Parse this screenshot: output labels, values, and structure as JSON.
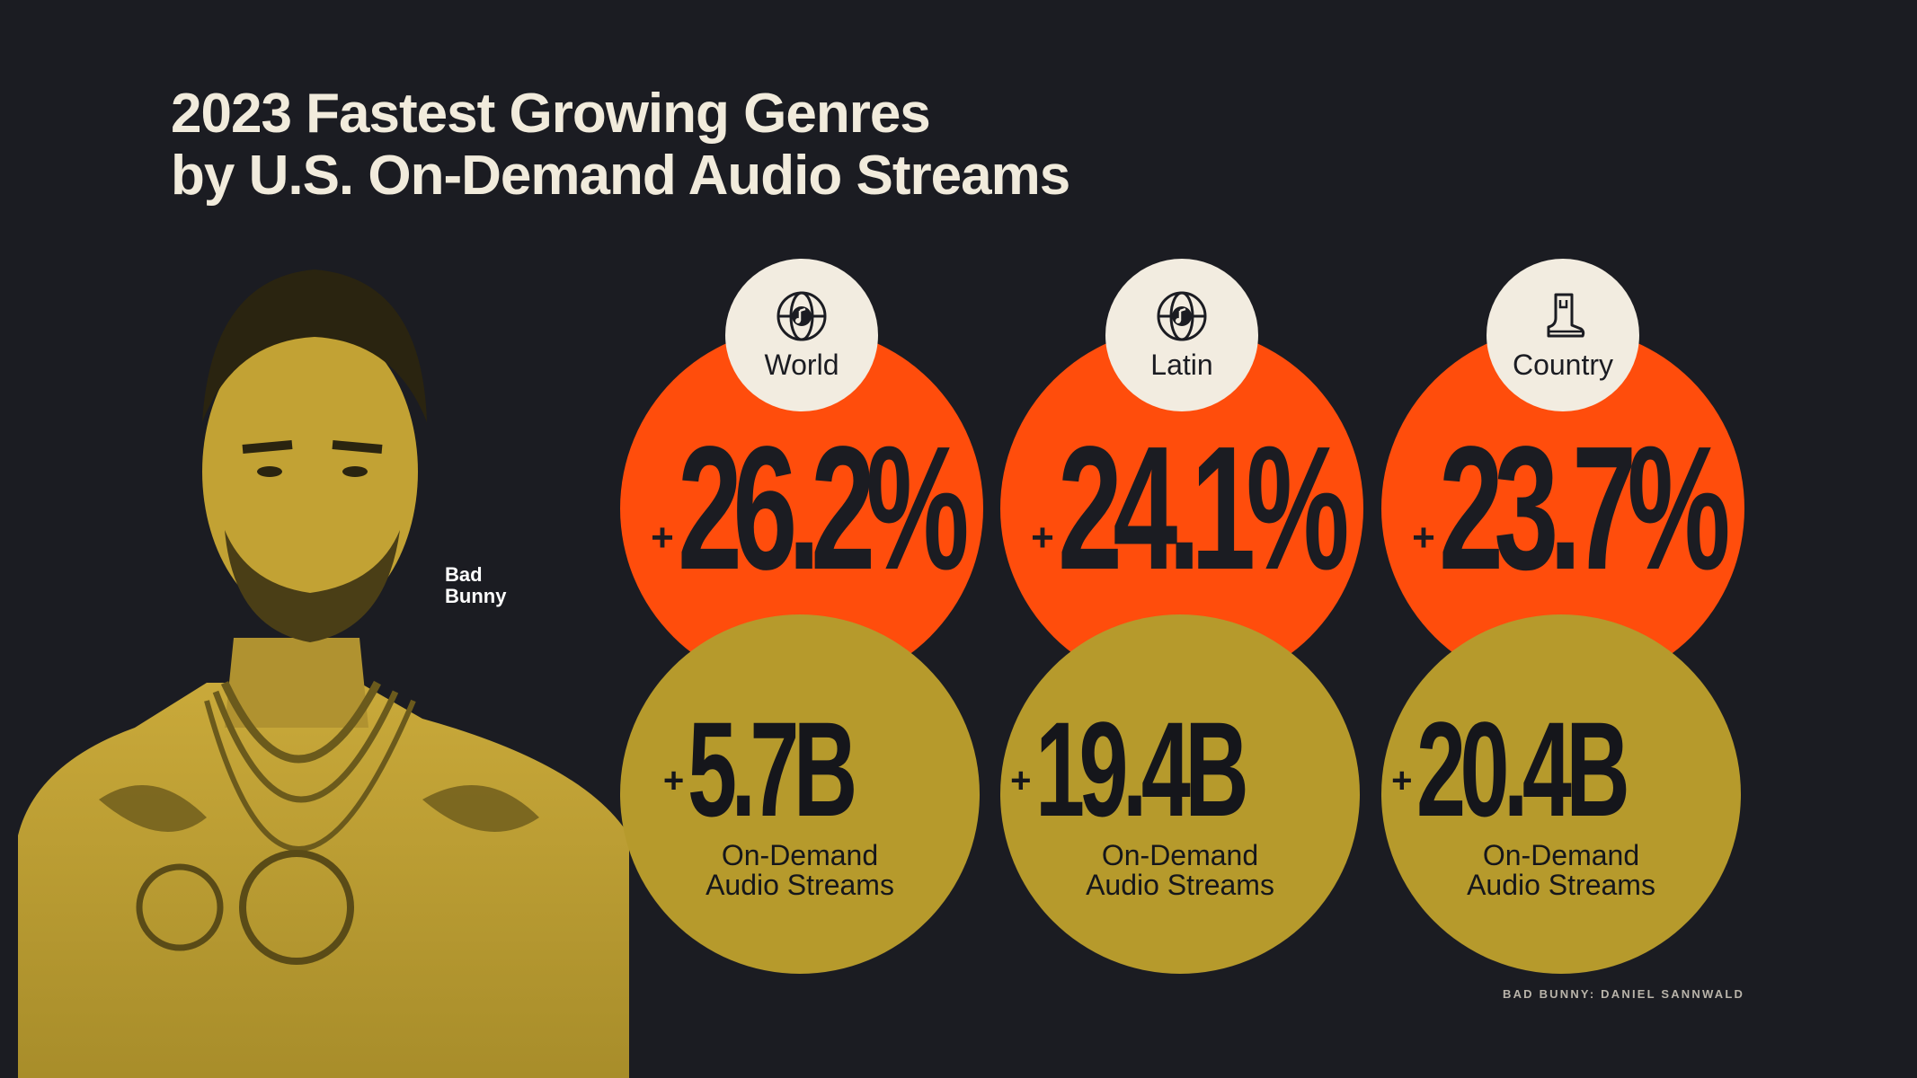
{
  "title": {
    "line1": "2023 Fastest Growing Genres",
    "line2": "by U.S. On-Demand Audio Streams"
  },
  "photo": {
    "caption_line1": "Bad",
    "caption_line2": "Bunny",
    "credit": "BAD BUNNY: DANIEL SANNWALD"
  },
  "colors": {
    "background": "#1b1c22",
    "growth_circle": "#ff4d0c",
    "streams_circle": "#b69a2c",
    "badge": "#f2ece0"
  },
  "chart_data": {
    "type": "table",
    "title": "2023 Fastest Growing Genres by U.S. On-Demand Audio Streams",
    "genres": [
      {
        "name": "World",
        "icon": "globe-music-note-icon",
        "growth_label": "26.2%",
        "growth_percent": 26.2,
        "streams_label": "5.7B",
        "streams_billions": 5.7,
        "streams_caption_line1": "On-Demand",
        "streams_caption_line2": "Audio Streams"
      },
      {
        "name": "Latin",
        "icon": "globe-music-note-icon",
        "growth_label": "24.1%",
        "growth_percent": 24.1,
        "streams_label": "19.4B",
        "streams_billions": 19.4,
        "streams_caption_line1": "On-Demand",
        "streams_caption_line2": "Audio Streams"
      },
      {
        "name": "Country",
        "icon": "cowboy-boot-icon",
        "growth_label": "23.7%",
        "growth_percent": 23.7,
        "streams_label": "20.4B",
        "streams_billions": 20.4,
        "streams_caption_line1": "On-Demand",
        "streams_caption_line2": "Audio Streams"
      }
    ],
    "plus_sign": "+"
  }
}
